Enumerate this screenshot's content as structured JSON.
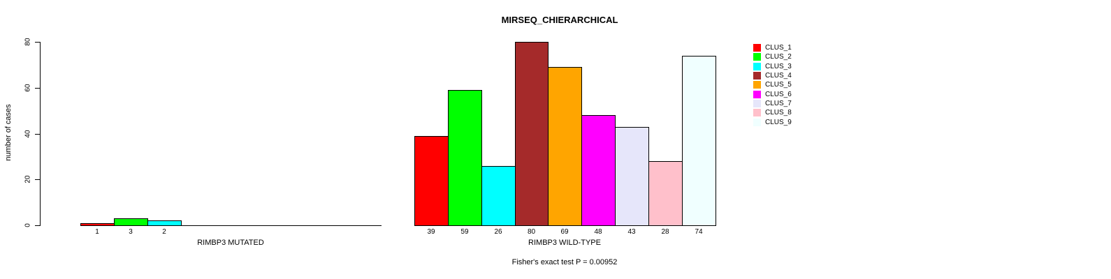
{
  "title": "MIRSEQ_CHIERARCHICAL",
  "footer": "Fisher's exact test P = 0.00952",
  "chart_data": {
    "type": "bar",
    "title": "MIRSEQ_CHIERARCHICAL",
    "ylabel": "number of cases",
    "xlabel": "",
    "ylim": [
      0,
      80
    ],
    "yticks": [
      0,
      20,
      40,
      60,
      80
    ],
    "grid": false,
    "legend_position": "right",
    "categories": [
      "CLUS_1",
      "CLUS_2",
      "CLUS_3",
      "CLUS_4",
      "CLUS_5",
      "CLUS_6",
      "CLUS_7",
      "CLUS_8",
      "CLUS_9"
    ],
    "colors": [
      "#FF0000",
      "#00FF00",
      "#00FFFF",
      "#A52A2A",
      "#FFA500",
      "#FF00FF",
      "#E6E6FA",
      "#FFC0CB",
      "#F0FFFF"
    ],
    "series": [
      {
        "name": "RIMBP3 MUTATED",
        "values": [
          1,
          3,
          2,
          0,
          0,
          0,
          0,
          0,
          0
        ]
      },
      {
        "name": "RIMBP3 WILD-TYPE",
        "values": [
          39,
          59,
          26,
          80,
          69,
          48,
          43,
          28,
          74
        ]
      }
    ],
    "annotation": "Fisher's exact test P = 0.00952"
  }
}
